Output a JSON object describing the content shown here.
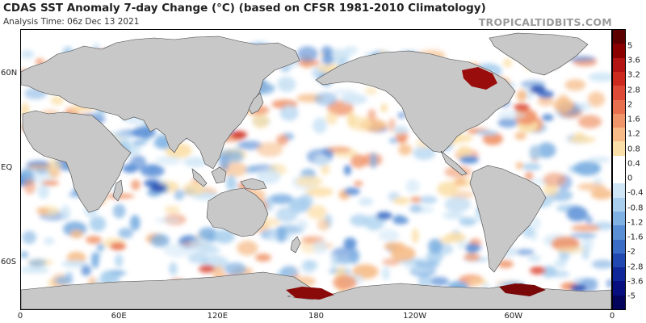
{
  "header": {
    "title": "CDAS SST Anomaly 7-day Change (°C) (based on CFSR 1981-2010 Climatology)",
    "subtitle": "Analysis Time: 06z Dec 13 2021",
    "watermark": "TROPICALTIDBITS.COM"
  },
  "map": {
    "lat_labels": [
      {
        "text": "60N",
        "lat": 60
      },
      {
        "text": "EQ",
        "lat": 0
      },
      {
        "text": "60S",
        "lat": -60
      }
    ],
    "lon_labels": [
      {
        "text": "0",
        "lon": 0
      },
      {
        "text": "60E",
        "lon": 60
      },
      {
        "text": "120E",
        "lon": 120
      },
      {
        "text": "180",
        "lon": 180
      },
      {
        "text": "120W",
        "lon": 240
      },
      {
        "text": "60W",
        "lon": 300
      },
      {
        "text": "0",
        "lon": 360
      }
    ],
    "land_color": "#c8c8c8",
    "ocean_color": "#ffffff"
  },
  "colorbar": {
    "units": "°C",
    "labels": [
      "5",
      "3.6",
      "3.2",
      "2.8",
      "2",
      "1.6",
      "1.2",
      "0.8",
      "0.4",
      "0",
      "-0.4",
      "-0.8",
      "-1.2",
      "-1.6",
      "-2",
      "-2.8",
      "-3.6",
      "-5"
    ],
    "colors": [
      "#5c0000",
      "#8a0000",
      "#b31414",
      "#cc2a1e",
      "#dd4a36",
      "#e8704e",
      "#f0956a",
      "#f6bb86",
      "#fbdfa8",
      "#ffffff",
      "#ffffff",
      "#cfe6f6",
      "#a8cfee",
      "#7fb1e2",
      "#5a8fd6",
      "#3b6cc6",
      "#2148b0",
      "#10279a",
      "#070e80",
      "#04045c"
    ]
  }
}
